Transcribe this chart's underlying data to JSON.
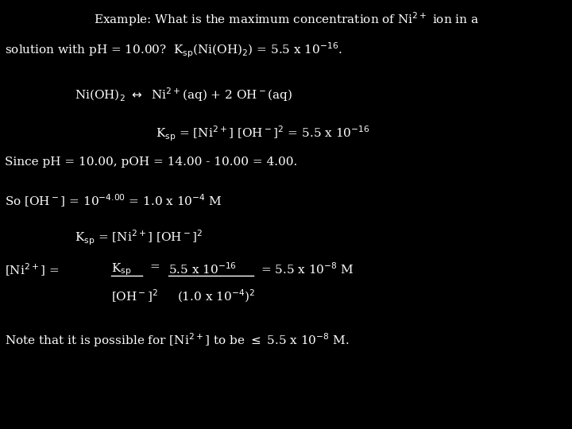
{
  "bg_color": "#000000",
  "text_color": "#ffffff",
  "figsize": [
    7.2,
    5.4
  ],
  "dpi": 100,
  "fs": 11.0
}
